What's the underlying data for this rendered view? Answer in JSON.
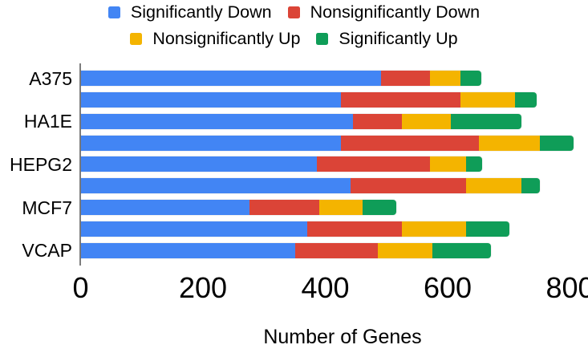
{
  "chart_data": {
    "type": "bar",
    "orientation": "horizontal-stacked",
    "title": "",
    "xlabel": "Number of Genes",
    "ylabel": "",
    "xticks": [
      0,
      200,
      400,
      600,
      800
    ],
    "xlim": [
      0,
      820
    ],
    "grid": false,
    "legend_position": "top",
    "series": [
      {
        "name": "Significantly Down",
        "color": "#4285F4"
      },
      {
        "name": "Nonsignificantly Down",
        "color": "#DB4437"
      },
      {
        "name": "Nonsignificantly Up",
        "color": "#F4B400"
      },
      {
        "name": "Significantly Up",
        "color": "#0F9D58"
      }
    ],
    "groups": [
      {
        "label": "A375",
        "bars": [
          [
            490,
            80,
            50,
            35
          ],
          [
            425,
            195,
            90,
            35
          ]
        ]
      },
      {
        "label": "HA1E",
        "bars": [
          [
            445,
            80,
            80,
            115
          ],
          [
            425,
            225,
            100,
            55
          ]
        ]
      },
      {
        "label": "HEPG2",
        "bars": [
          [
            385,
            185,
            60,
            25
          ],
          [
            440,
            190,
            90,
            30
          ]
        ]
      },
      {
        "label": "MCF7",
        "bars": [
          [
            275,
            115,
            70,
            55
          ],
          [
            370,
            155,
            105,
            70
          ]
        ]
      },
      {
        "label": "VCAP",
        "bars": [
          [
            350,
            135,
            90,
            95
          ]
        ]
      }
    ],
    "legend_rows": [
      [
        0,
        1
      ],
      [
        2,
        3
      ]
    ]
  }
}
